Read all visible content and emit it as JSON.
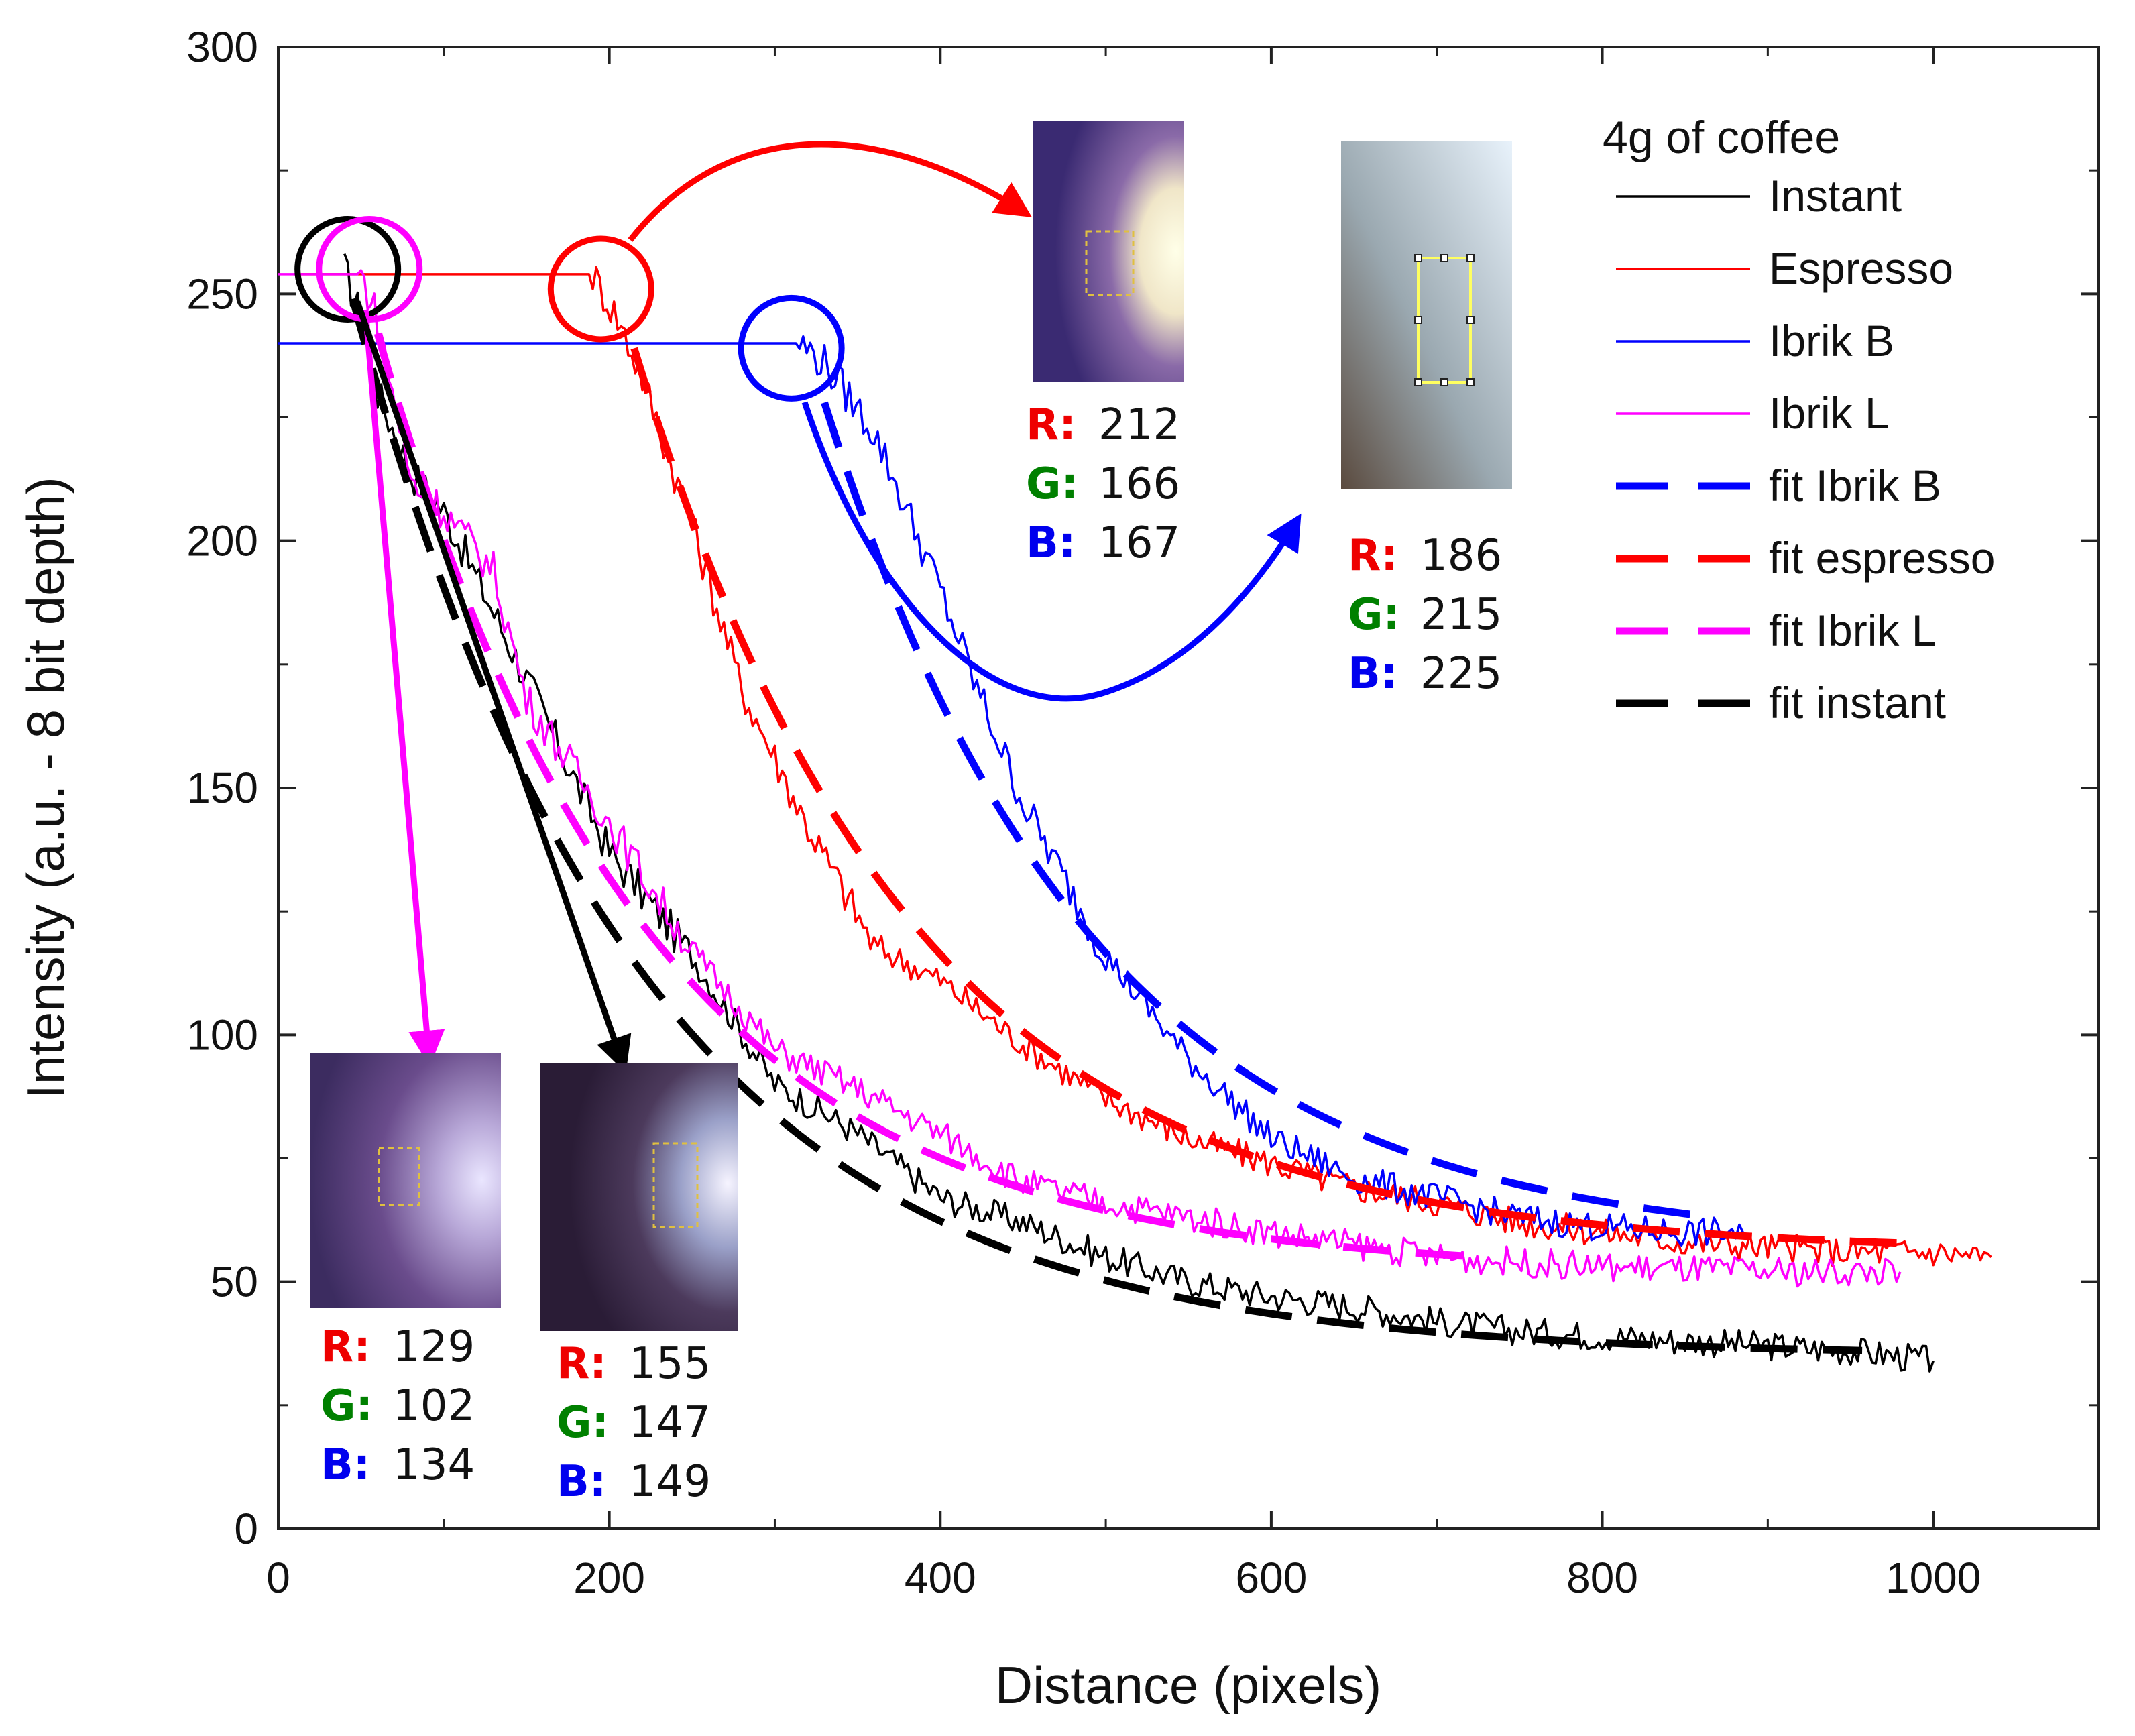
{
  "chart_data": {
    "type": "line",
    "xlabel": "Distance (pixels)",
    "ylabel": "Intensity (a.u. - 8 bit depth)",
    "xlim": [
      0,
      1100
    ],
    "ylim": [
      0,
      300
    ],
    "xticks": [
      0,
      200,
      400,
      600,
      800,
      1000
    ],
    "yticks": [
      0,
      50,
      100,
      150,
      200,
      250,
      300
    ],
    "xtick_labels": [
      "0",
      "200",
      "400",
      "600",
      "800",
      "1000"
    ],
    "ytick_labels": [
      "0",
      "50",
      "100",
      "150",
      "200",
      "250",
      "300"
    ],
    "legend": {
      "title": "4g of coffee",
      "position": "top-right",
      "entries": [
        {
          "label": "Instant",
          "color": "#000000",
          "style": "solid"
        },
        {
          "label": "Espresso",
          "color": "#ff0000",
          "style": "solid"
        },
        {
          "label": "Ibrik B",
          "color": "#0000ff",
          "style": "solid"
        },
        {
          "label": "Ibrik L",
          "color": "#ff00ff",
          "style": "solid"
        },
        {
          "label": "fit Ibrik B",
          "color": "#0000ff",
          "style": "dashed"
        },
        {
          "label": "fit espresso",
          "color": "#ff0000",
          "style": "dashed"
        },
        {
          "label": "fit Ibrik L",
          "color": "#ff00ff",
          "style": "dashed"
        },
        {
          "label": "fit instant",
          "color": "#000000",
          "style": "dashed"
        }
      ]
    },
    "series": [
      {
        "name": "Instant",
        "color": "#000000",
        "x": [
          40,
          50,
          60,
          80,
          100,
          150,
          200,
          250,
          300,
          350,
          400,
          450,
          500,
          550,
          600,
          650,
          700,
          750,
          800,
          850,
          900,
          950,
          1000
        ],
        "y": [
          255,
          245,
          230,
          214,
          206,
          172,
          137,
          116,
          90,
          80,
          67,
          62,
          55,
          50,
          47,
          45,
          42,
          40,
          39,
          38,
          37,
          36,
          34
        ]
      },
      {
        "name": "Espresso",
        "color": "#ff0000",
        "x": [
          10,
          190,
          205,
          220,
          250,
          280,
          320,
          360,
          400,
          450,
          500,
          550,
          600,
          650,
          700,
          750,
          800,
          850,
          900,
          950,
          1000,
          1035
        ],
        "y": [
          254,
          254,
          245,
          233,
          203,
          170,
          142,
          118,
          111,
          98,
          87,
          79,
          74,
          69,
          66,
          62,
          60,
          58,
          57,
          56,
          56,
          55
        ]
      },
      {
        "name": "Ibrik B",
        "color": "#0000ff",
        "x": [
          0,
          315,
          330,
          360,
          400,
          420,
          450,
          500,
          550,
          600,
          650,
          700,
          750,
          800,
          850,
          885
        ],
        "y": [
          240,
          240,
          236,
          222,
          190,
          172,
          147,
          116,
          95,
          79,
          71,
          67,
          63,
          61,
          60,
          60
        ]
      },
      {
        "name": "Ibrik L",
        "color": "#ff00ff",
        "x": [
          0,
          50,
          60,
          80,
          100,
          130,
          150,
          200,
          250,
          300,
          350,
          400,
          450,
          500,
          600,
          700,
          800,
          900,
          980
        ],
        "y": [
          254,
          254,
          245,
          212,
          206,
          194,
          168,
          143,
          117,
          97,
          89,
          80,
          70,
          66,
          60,
          55,
          53,
          52,
          52
        ]
      }
    ],
    "fits": [
      {
        "name": "fit Ibrik B",
        "color": "#0000ff",
        "model": "exp",
        "a": 57,
        "b": 171,
        "x0": 330,
        "k": 0.0062,
        "range": [
          330,
          860
        ]
      },
      {
        "name": "fit espresso",
        "color": "#ff0000",
        "model": "exp",
        "a": 56,
        "b": 183,
        "x0": 215,
        "k": 0.006,
        "range": [
          215,
          985
        ]
      },
      {
        "name": "fit Ibrik L",
        "color": "#ff00ff",
        "model": "exp",
        "a": 52,
        "b": 190,
        "x0": 60,
        "k": 0.0062,
        "range": [
          60,
          720
        ]
      },
      {
        "name": "fit instant",
        "color": "#000000",
        "model": "exp",
        "a": 35,
        "b": 214,
        "x0": 45,
        "k": 0.0058,
        "range": [
          45,
          960
        ]
      }
    ],
    "markers": [
      {
        "series": "Instant",
        "color": "#000000",
        "center": [
          42,
          255
        ]
      },
      {
        "series": "Ibrik L",
        "color": "#ff00ff",
        "center": [
          55,
          255
        ]
      },
      {
        "series": "Espresso",
        "color": "#ff0000",
        "center": [
          195,
          251
        ]
      },
      {
        "series": "Ibrik B",
        "color": "#0000ff",
        "center": [
          310,
          239
        ]
      }
    ],
    "insets": [
      {
        "id": "ibrikL",
        "series": "Ibrik L",
        "arrow_color": "#ff00ff",
        "R": "129",
        "G": "102",
        "B": "134"
      },
      {
        "id": "instant",
        "series": "Instant",
        "arrow_color": "#000000",
        "R": "155",
        "G": "147",
        "B": "149"
      },
      {
        "id": "espresso",
        "series": "Espresso",
        "arrow_color": "#ff0000",
        "R": "212",
        "G": "166",
        "B": "167"
      },
      {
        "id": "ibrikB",
        "series": "Ibrik B",
        "arrow_color": "#0000ff",
        "R": "186",
        "G": "215",
        "B": "225"
      }
    ],
    "channel_labels": {
      "r": "R:",
      "g": "G:",
      "b": "B:"
    },
    "channel_colors": {
      "r": "#ee0000",
      "g": "#008000",
      "b": "#0000ee"
    }
  }
}
